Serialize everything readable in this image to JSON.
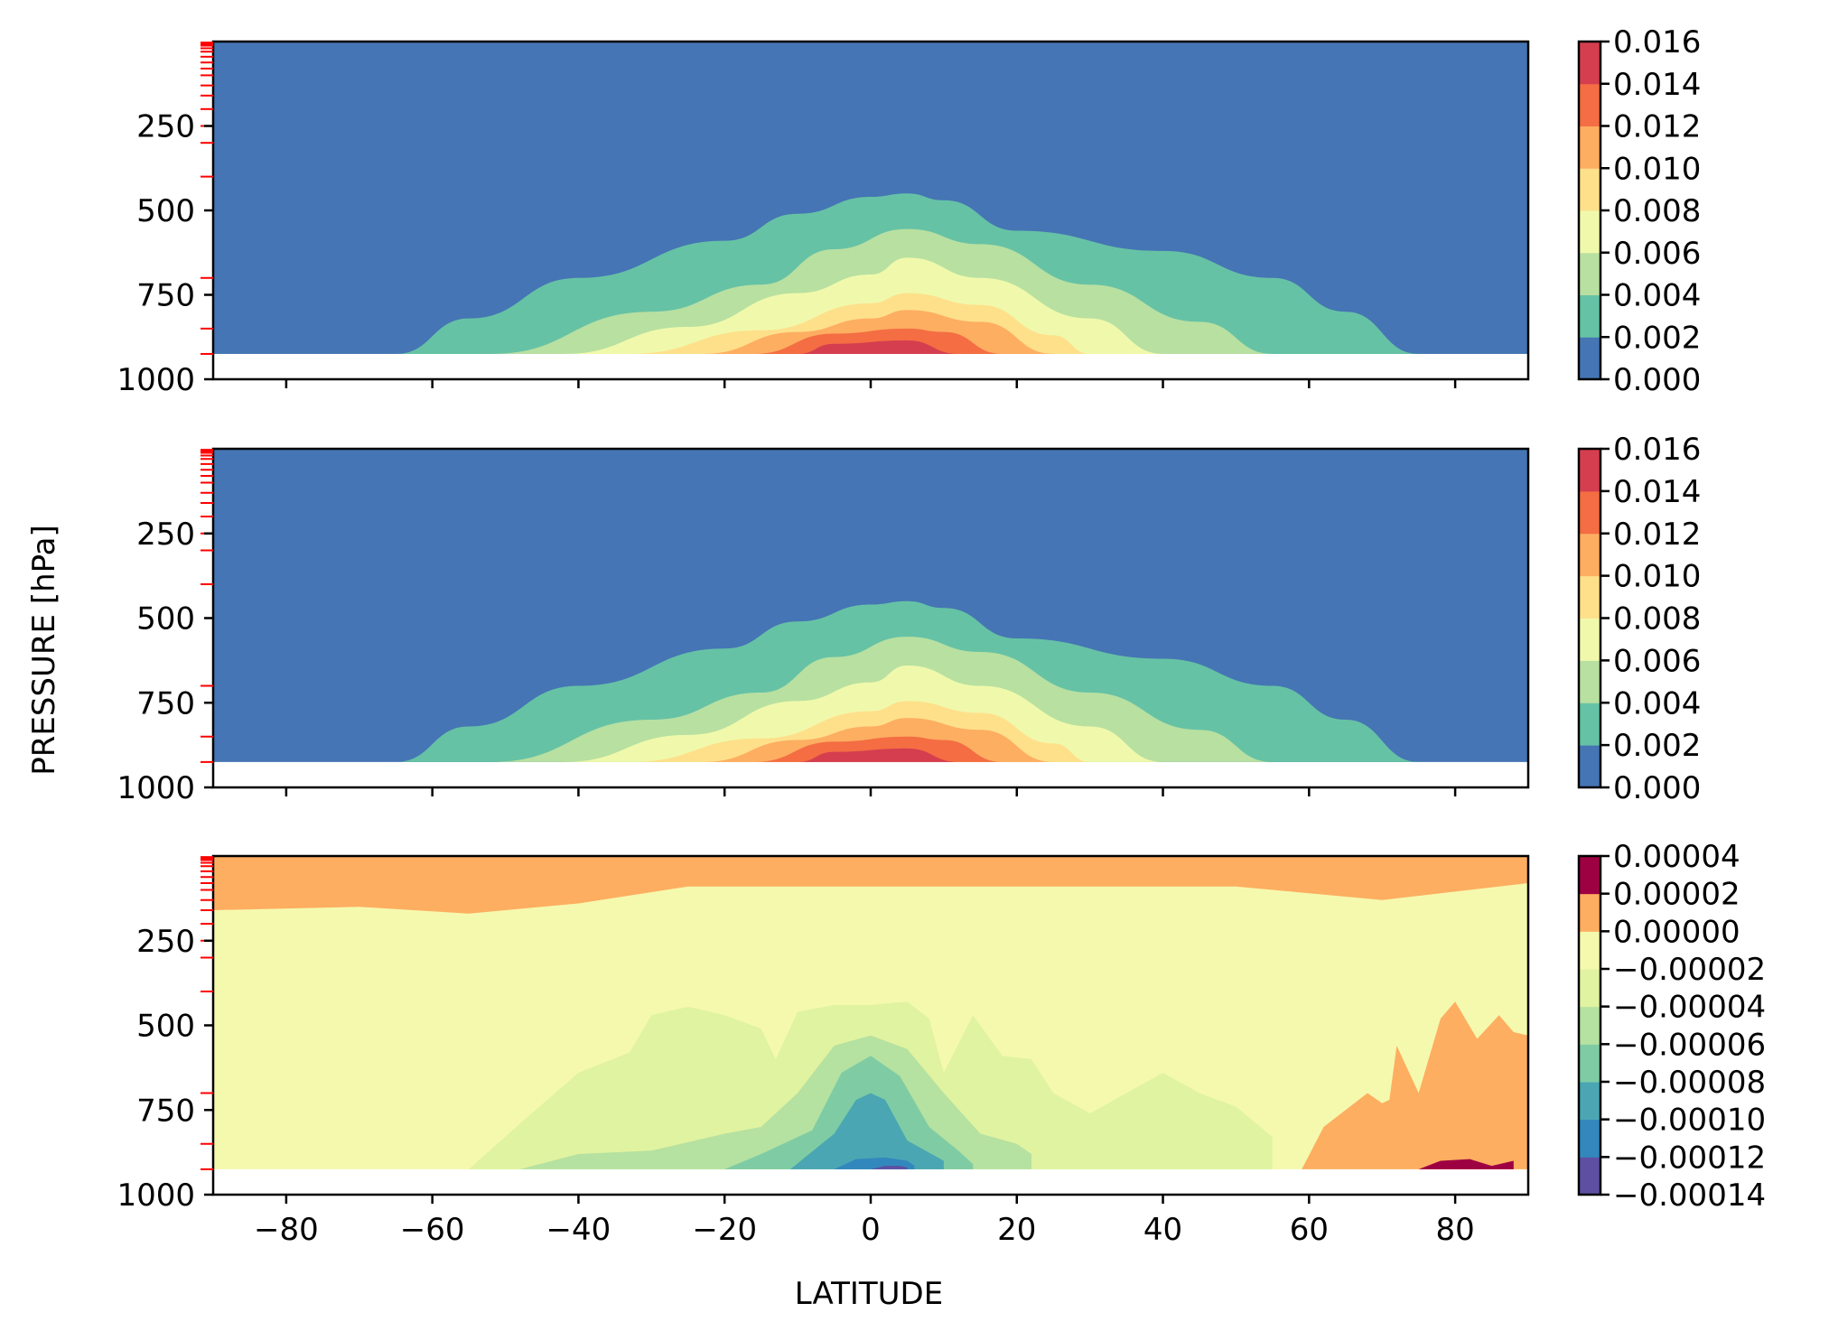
{
  "figure": {
    "ylabel": "PRESSURE [hPa]",
    "xlabel": "LATITUDE"
  },
  "chart_data": [
    {
      "type": "contour",
      "panel": "top",
      "title": "",
      "xlabel": "",
      "ylabel": "PRESSURE [hPa]",
      "xlim": [
        -90,
        90
      ],
      "ylim": [
        1000,
        0
      ],
      "xticks": [
        -80,
        -60,
        -40,
        -20,
        0,
        20,
        40,
        60,
        80
      ],
      "yticks": [
        250,
        500,
        750,
        1000
      ],
      "ytick_labels": [
        "250",
        "500",
        "750",
        "1000"
      ],
      "model_levels_hPa": [
        3,
        7,
        12,
        20,
        30,
        45,
        62,
        80,
        100,
        130,
        160,
        200,
        250,
        300,
        400,
        700,
        850,
        925
      ],
      "colorbar_levels": [
        "0.000",
        "0.002",
        "0.004",
        "0.006",
        "0.008",
        "0.010",
        "0.012",
        "0.014",
        "0.016"
      ],
      "colors": [
        "#4575b4",
        "#66c2a5",
        "#b8e0a1",
        "#f0f9ab",
        "#fee08b",
        "#fdae61",
        "#f46d43",
        "#d53e4f",
        "#9e0142"
      ],
      "band_tops_hPa": [
        {
          "level": 0.002,
          "lat": [
            -65,
            -55,
            -40,
            -20,
            -10,
            0,
            5,
            10,
            20,
            40,
            55,
            65,
            75
          ],
          "p": [
            925,
            820,
            700,
            590,
            510,
            460,
            450,
            470,
            560,
            620,
            700,
            800,
            925
          ]
        },
        {
          "level": 0.004,
          "lat": [
            -52,
            -30,
            -15,
            -5,
            5,
            15,
            30,
            45,
            55
          ],
          "p": [
            925,
            800,
            720,
            615,
            555,
            600,
            720,
            830,
            925
          ]
        },
        {
          "level": 0.006,
          "lat": [
            -42,
            -25,
            -10,
            0,
            5,
            15,
            30,
            40
          ],
          "p": [
            925,
            845,
            745,
            690,
            640,
            700,
            820,
            925
          ]
        },
        {
          "level": 0.008,
          "lat": [
            -33,
            -15,
            0,
            5,
            15,
            25,
            30
          ],
          "p": [
            925,
            855,
            775,
            745,
            780,
            870,
            925
          ]
        },
        {
          "level": 0.01,
          "lat": [
            -23,
            -10,
            0,
            5,
            15,
            25
          ],
          "p": [
            925,
            860,
            820,
            795,
            830,
            925
          ]
        },
        {
          "level": 0.012,
          "lat": [
            -16,
            -5,
            5,
            10,
            18
          ],
          "p": [
            925,
            865,
            850,
            860,
            925
          ]
        },
        {
          "level": 0.014,
          "lat": [
            -10,
            -5,
            5,
            12
          ],
          "p": [
            925,
            895,
            885,
            925
          ]
        }
      ]
    },
    {
      "type": "contour",
      "panel": "middle",
      "title": "",
      "xlabel": "",
      "ylabel": "PRESSURE [hPa]",
      "xlim": [
        -90,
        90
      ],
      "ylim": [
        1000,
        0
      ],
      "xticks": [
        -80,
        -60,
        -40,
        -20,
        0,
        20,
        40,
        60,
        80
      ],
      "yticks": [
        250,
        500,
        750,
        1000
      ],
      "ytick_labels": [
        "250",
        "500",
        "750",
        "1000"
      ],
      "model_levels_hPa": [
        3,
        7,
        12,
        20,
        30,
        45,
        62,
        80,
        100,
        130,
        160,
        200,
        250,
        300,
        400,
        700,
        850,
        925
      ],
      "colorbar_levels": [
        "0.000",
        "0.002",
        "0.004",
        "0.006",
        "0.008",
        "0.010",
        "0.012",
        "0.014",
        "0.016"
      ],
      "colors": [
        "#4575b4",
        "#66c2a5",
        "#b8e0a1",
        "#f0f9ab",
        "#fee08b",
        "#fdae61",
        "#f46d43",
        "#d53e4f",
        "#9e0142"
      ],
      "band_tops_hPa": [
        {
          "level": 0.002,
          "lat": [
            -65,
            -55,
            -40,
            -20,
            -10,
            0,
            5,
            10,
            20,
            40,
            55,
            65,
            75
          ],
          "p": [
            925,
            820,
            700,
            590,
            510,
            460,
            450,
            470,
            560,
            620,
            700,
            800,
            925
          ]
        },
        {
          "level": 0.004,
          "lat": [
            -52,
            -30,
            -15,
            -5,
            5,
            15,
            30,
            45,
            55
          ],
          "p": [
            925,
            800,
            720,
            615,
            555,
            600,
            720,
            830,
            925
          ]
        },
        {
          "level": 0.006,
          "lat": [
            -42,
            -25,
            -10,
            0,
            5,
            15,
            30,
            40
          ],
          "p": [
            925,
            845,
            745,
            690,
            640,
            700,
            820,
            925
          ]
        },
        {
          "level": 0.008,
          "lat": [
            -33,
            -15,
            0,
            5,
            15,
            25,
            30
          ],
          "p": [
            925,
            855,
            775,
            745,
            780,
            870,
            925
          ]
        },
        {
          "level": 0.01,
          "lat": [
            -23,
            -10,
            0,
            5,
            15,
            25
          ],
          "p": [
            925,
            860,
            820,
            795,
            830,
            925
          ]
        },
        {
          "level": 0.012,
          "lat": [
            -16,
            -5,
            5,
            10,
            18
          ],
          "p": [
            925,
            865,
            850,
            860,
            925
          ]
        },
        {
          "level": 0.014,
          "lat": [
            -10,
            -5,
            5,
            12
          ],
          "p": [
            925,
            895,
            885,
            925
          ]
        }
      ]
    },
    {
      "type": "contour",
      "panel": "bottom",
      "title": "",
      "xlabel": "LATITUDE",
      "ylabel": "PRESSURE [hPa]",
      "xlim": [
        -90,
        90
      ],
      "ylim": [
        1000,
        0
      ],
      "xticks": [
        -80,
        -60,
        -40,
        -20,
        0,
        20,
        40,
        60,
        80
      ],
      "xtick_labels": [
        "−80",
        "−60",
        "−40",
        "−20",
        "0",
        "20",
        "40",
        "60",
        "80"
      ],
      "yticks": [
        250,
        500,
        750,
        1000
      ],
      "ytick_labels": [
        "250",
        "500",
        "750",
        "1000"
      ],
      "model_levels_hPa": [
        3,
        7,
        12,
        20,
        30,
        45,
        62,
        80,
        100,
        130,
        160,
        200,
        250,
        300,
        400,
        700,
        850,
        925
      ],
      "colorbar_levels": [
        "−0.00014",
        "−0.00012",
        "−0.00010",
        "−0.00008",
        "−0.00006",
        "−0.00004",
        "−0.00002",
        "0.00000",
        "0.00002",
        "0.00004"
      ],
      "colors": [
        "#5e4fa2",
        "#3288bd",
        "#4ba6b3",
        "#7fcca4",
        "#b5e1a1",
        "#e0f3a0",
        "#f5f9ae",
        "#fdae61",
        "#9e0142"
      ],
      "background_color": "#f5f9ae",
      "regions": [
        {
          "level": "0.00000 to 0.00002",
          "color": "#fdae61",
          "lat": [
            -90,
            -60,
            -40,
            -20,
            0,
            20,
            40,
            60,
            70,
            90,
            90,
            70,
            50,
            30,
            10,
            -10,
            -25,
            -40,
            -55,
            -70,
            -90
          ],
          "p": [
            0,
            0,
            0,
            0,
            0,
            0,
            0,
            0,
            0,
            0,
            80,
            130,
            90,
            90,
            90,
            90,
            90,
            140,
            170,
            150,
            160
          ]
        },
        {
          "level": "0.00000 to 0.00002",
          "color": "#fdae61",
          "lat": [
            59,
            62,
            68,
            70,
            71,
            72,
            75,
            78,
            80,
            83,
            86,
            88,
            90,
            90,
            59
          ],
          "p": [
            925,
            800,
            700,
            730,
            720,
            560,
            700,
            480,
            430,
            540,
            470,
            520,
            530,
            925,
            925
          ]
        },
        {
          "level": "0.00002 to 0.00004",
          "color": "#9e0142",
          "lat": [
            75,
            78,
            82,
            85,
            88,
            88,
            75
          ],
          "p": [
            925,
            900,
            895,
            915,
            900,
            925,
            925
          ]
        },
        {
          "level": "-0.00004 to -0.00002",
          "color": "#e0f3a0",
          "lat": [
            -55,
            -48,
            -40,
            -33,
            -30,
            -25,
            -20,
            -15,
            -13,
            -10,
            -5,
            0,
            5,
            8,
            10,
            14,
            18,
            22,
            25,
            30,
            35,
            40,
            45,
            50,
            55,
            55,
            -55
          ],
          "p": [
            925,
            790,
            640,
            580,
            470,
            445,
            470,
            510,
            600,
            460,
            440,
            440,
            430,
            480,
            640,
            470,
            590,
            600,
            700,
            760,
            700,
            640,
            700,
            740,
            830,
            925,
            925
          ]
        },
        {
          "level": "-0.00006 to -0.00004",
          "color": "#b5e1a1",
          "lat": [
            -48,
            -40,
            -30,
            -20,
            -15,
            -10,
            -5,
            0,
            5,
            10,
            15,
            20,
            22,
            22,
            -48
          ],
          "p": [
            925,
            880,
            870,
            820,
            800,
            700,
            560,
            530,
            570,
            700,
            820,
            850,
            880,
            925,
            925
          ]
        },
        {
          "level": "-0.00008 to -0.00006",
          "color": "#7fcca4",
          "lat": [
            -20,
            -15,
            -8,
            -4,
            0,
            4,
            8,
            12,
            14,
            14,
            -20
          ],
          "p": [
            925,
            880,
            810,
            640,
            590,
            650,
            800,
            870,
            910,
            925,
            925
          ]
        },
        {
          "level": "-0.00010 to -0.00008",
          "color": "#4ba6b3",
          "lat": [
            -11,
            -5,
            -2,
            0,
            2,
            5,
            10,
            10,
            -11
          ],
          "p": [
            925,
            820,
            720,
            700,
            720,
            840,
            900,
            925,
            925
          ]
        },
        {
          "level": "-0.00012 to -0.00010",
          "color": "#3288bd",
          "lat": [
            -5,
            -2,
            2,
            5,
            6,
            6,
            -5
          ],
          "p": [
            925,
            895,
            890,
            900,
            915,
            925,
            925
          ]
        },
        {
          "level": "-0.00014 to -0.00012",
          "color": "#5e4fa2",
          "lat": [
            0,
            2,
            4,
            5,
            5,
            0
          ],
          "p": [
            925,
            915,
            915,
            920,
            925,
            925
          ]
        }
      ]
    }
  ]
}
